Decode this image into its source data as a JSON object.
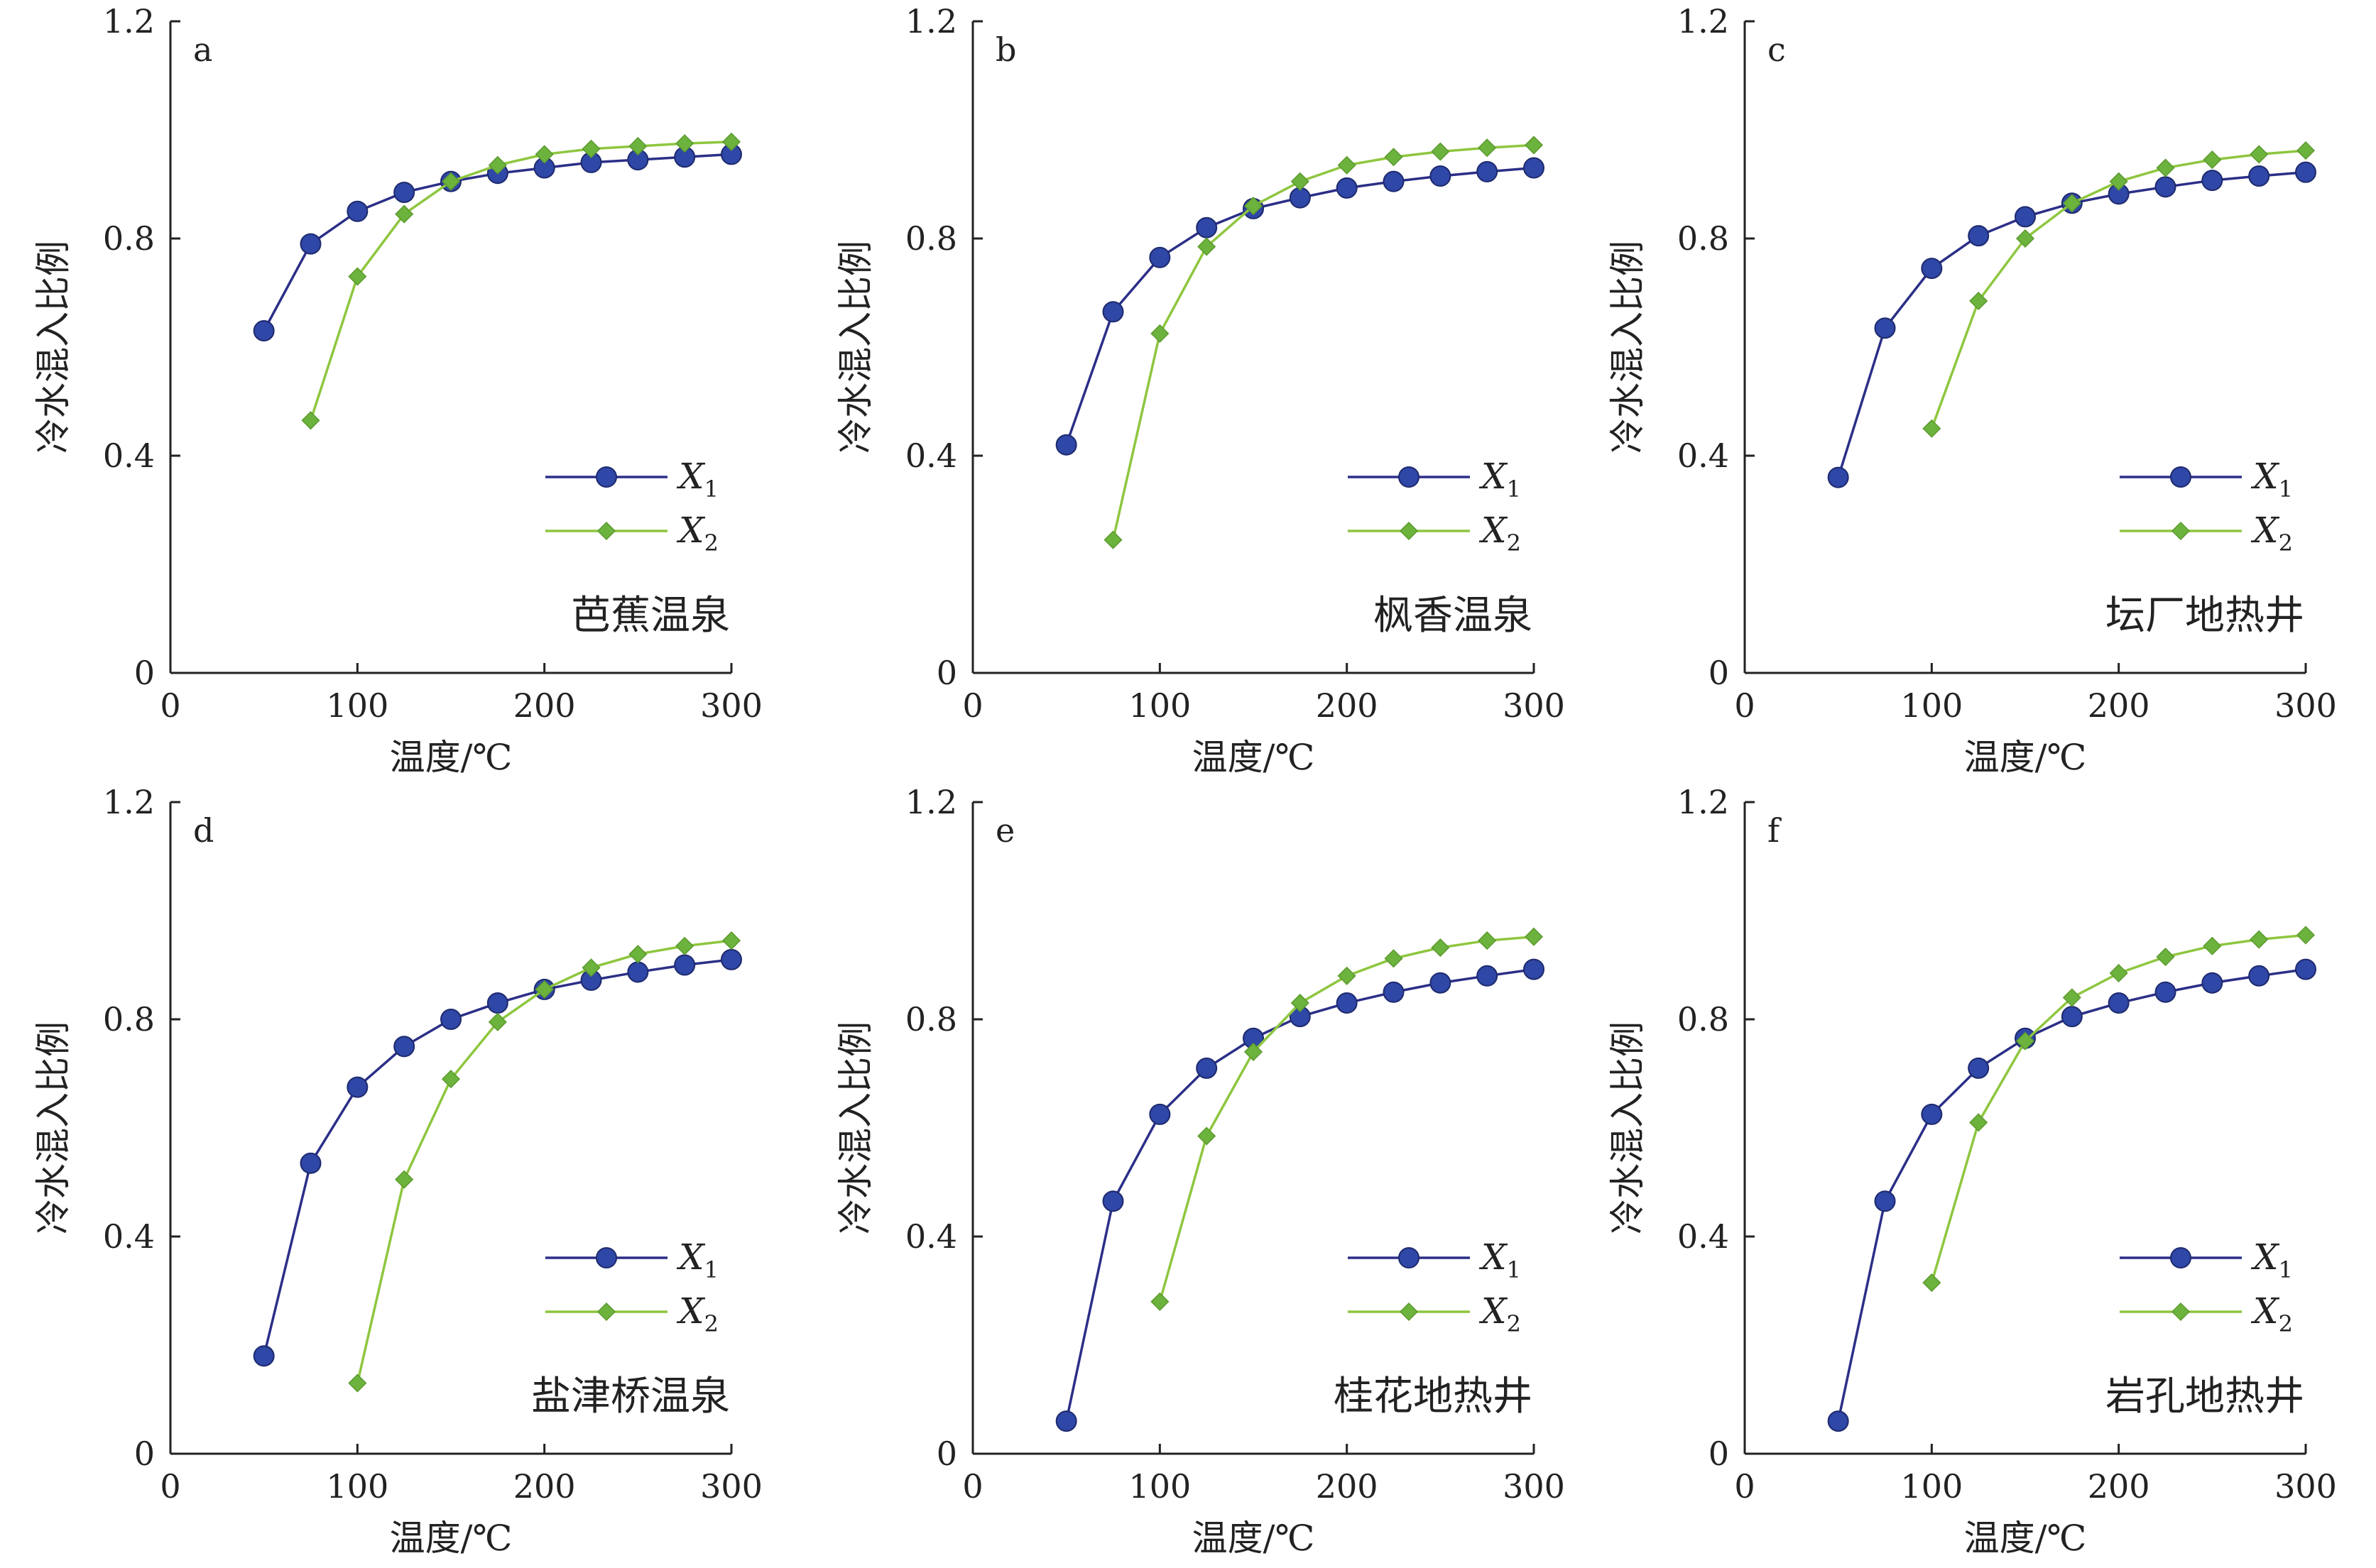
{
  "figure": {
    "x_label": "温度/℃",
    "y_label": "冷水混入比例",
    "legend": {
      "x1_main": "X",
      "x1_sub": "1",
      "x2_main": "X",
      "x2_sub": "2"
    },
    "colors": {
      "x1_line": "#2b2f87",
      "x1_marker": "#2f47a6",
      "x2_line": "#8ec63f",
      "x2_marker": "#6cb33e",
      "axis": "#222222"
    }
  },
  "chart_data": [
    {
      "type": "line",
      "panel": "a",
      "site": "芭蕉温泉",
      "xlabel": "温度/℃",
      "ylabel": "冷水混入比例",
      "xlim": [
        0,
        300
      ],
      "ylim": [
        0,
        1.2
      ],
      "x_ticks": [
        "0",
        "100",
        "200",
        "300"
      ],
      "y_ticks": [
        "0",
        "0.4",
        "0.8",
        "1.2"
      ],
      "legend_position": "right",
      "series": [
        {
          "name": "X1",
          "marker": "circle",
          "x": [
            50,
            75,
            100,
            125,
            150,
            175,
            200,
            225,
            250,
            275,
            300
          ],
          "values": [
            0.63,
            0.79,
            0.85,
            0.885,
            0.905,
            0.92,
            0.93,
            0.94,
            0.945,
            0.95,
            0.955
          ]
        },
        {
          "name": "X2",
          "marker": "diamond",
          "x": [
            75,
            100,
            125,
            150,
            175,
            200,
            225,
            250,
            275,
            300
          ],
          "values": [
            0.465,
            0.73,
            0.845,
            0.905,
            0.935,
            0.955,
            0.965,
            0.97,
            0.975,
            0.978
          ]
        }
      ]
    },
    {
      "type": "line",
      "panel": "b",
      "site": "枫香温泉",
      "xlabel": "温度/℃",
      "ylabel": "冷水混入比例",
      "xlim": [
        0,
        300
      ],
      "ylim": [
        0,
        1.2
      ],
      "x_ticks": [
        "0",
        "100",
        "200",
        "300"
      ],
      "y_ticks": [
        "0",
        "0.4",
        "0.8",
        "1.2"
      ],
      "legend_position": "right",
      "series": [
        {
          "name": "X1",
          "marker": "circle",
          "x": [
            50,
            75,
            100,
            125,
            150,
            175,
            200,
            225,
            250,
            275,
            300
          ],
          "values": [
            0.42,
            0.665,
            0.765,
            0.82,
            0.855,
            0.875,
            0.893,
            0.905,
            0.915,
            0.923,
            0.93
          ]
        },
        {
          "name": "X2",
          "marker": "diamond",
          "x": [
            75,
            100,
            125,
            150,
            175,
            200,
            225,
            250,
            275,
            300
          ],
          "values": [
            0.245,
            0.625,
            0.785,
            0.86,
            0.905,
            0.935,
            0.95,
            0.96,
            0.967,
            0.972
          ]
        }
      ]
    },
    {
      "type": "line",
      "panel": "c",
      "site": "坛厂地热井",
      "xlabel": "温度/℃",
      "ylabel": "冷水混入比例",
      "xlim": [
        0,
        300
      ],
      "ylim": [
        0,
        1.2
      ],
      "x_ticks": [
        "0",
        "100",
        "200",
        "300"
      ],
      "y_ticks": [
        "0",
        "0.4",
        "0.8",
        "1.2"
      ],
      "legend_position": "right",
      "series": [
        {
          "name": "X1",
          "marker": "circle",
          "x": [
            50,
            75,
            100,
            125,
            150,
            175,
            200,
            225,
            250,
            275,
            300
          ],
          "values": [
            0.36,
            0.635,
            0.745,
            0.805,
            0.84,
            0.865,
            0.882,
            0.895,
            0.907,
            0.915,
            0.922
          ]
        },
        {
          "name": "X2",
          "marker": "diamond",
          "x": [
            100,
            125,
            150,
            175,
            200,
            225,
            250,
            275,
            300
          ],
          "values": [
            0.45,
            0.685,
            0.8,
            0.865,
            0.905,
            0.93,
            0.945,
            0.955,
            0.962
          ]
        }
      ]
    },
    {
      "type": "line",
      "panel": "d",
      "site": "盐津桥温泉",
      "xlabel": "温度/℃",
      "ylabel": "冷水混入比例",
      "xlim": [
        0,
        300
      ],
      "ylim": [
        0,
        1.2
      ],
      "x_ticks": [
        "0",
        "100",
        "200",
        "300"
      ],
      "y_ticks": [
        "0",
        "0.4",
        "0.8",
        "1.2"
      ],
      "legend_position": "right",
      "series": [
        {
          "name": "X1",
          "marker": "circle",
          "x": [
            50,
            75,
            100,
            125,
            150,
            175,
            200,
            225,
            250,
            275,
            300
          ],
          "values": [
            0.18,
            0.535,
            0.675,
            0.75,
            0.8,
            0.83,
            0.855,
            0.872,
            0.887,
            0.9,
            0.91
          ]
        },
        {
          "name": "X2",
          "marker": "diamond",
          "x": [
            100,
            125,
            150,
            175,
            200,
            225,
            250,
            275,
            300
          ],
          "values": [
            0.13,
            0.505,
            0.69,
            0.795,
            0.855,
            0.895,
            0.92,
            0.935,
            0.945
          ]
        }
      ]
    },
    {
      "type": "line",
      "panel": "e",
      "site": "桂花地热井",
      "xlabel": "温度/℃",
      "ylabel": "冷水混入比例",
      "xlim": [
        0,
        300
      ],
      "ylim": [
        0,
        1.2
      ],
      "x_ticks": [
        "0",
        "100",
        "200",
        "300"
      ],
      "y_ticks": [
        "0",
        "0.4",
        "0.8",
        "1.2"
      ],
      "legend_position": "right",
      "series": [
        {
          "name": "X1",
          "marker": "circle",
          "x": [
            50,
            75,
            100,
            125,
            150,
            175,
            200,
            225,
            250,
            275,
            300
          ],
          "values": [
            0.06,
            0.465,
            0.625,
            0.71,
            0.765,
            0.805,
            0.83,
            0.85,
            0.867,
            0.88,
            0.892
          ]
        },
        {
          "name": "X2",
          "marker": "diamond",
          "x": [
            100,
            125,
            150,
            175,
            200,
            225,
            250,
            275,
            300
          ],
          "values": [
            0.28,
            0.585,
            0.74,
            0.83,
            0.88,
            0.912,
            0.932,
            0.945,
            0.952
          ]
        }
      ]
    },
    {
      "type": "line",
      "panel": "f",
      "site": "岩孔地热井",
      "xlabel": "温度/℃",
      "ylabel": "冷水混入比例",
      "xlim": [
        0,
        300
      ],
      "ylim": [
        0,
        1.2
      ],
      "x_ticks": [
        "0",
        "100",
        "200",
        "300"
      ],
      "y_ticks": [
        "0",
        "0.4",
        "0.8",
        "1.2"
      ],
      "legend_position": "right",
      "series": [
        {
          "name": "X1",
          "marker": "circle",
          "x": [
            50,
            75,
            100,
            125,
            150,
            175,
            200,
            225,
            250,
            275,
            300
          ],
          "values": [
            0.06,
            0.465,
            0.625,
            0.71,
            0.765,
            0.805,
            0.83,
            0.85,
            0.867,
            0.88,
            0.892
          ]
        },
        {
          "name": "X2",
          "marker": "diamond",
          "x": [
            100,
            125,
            150,
            175,
            200,
            225,
            250,
            275,
            300
          ],
          "values": [
            0.315,
            0.61,
            0.76,
            0.84,
            0.885,
            0.915,
            0.935,
            0.947,
            0.955
          ]
        }
      ]
    }
  ]
}
